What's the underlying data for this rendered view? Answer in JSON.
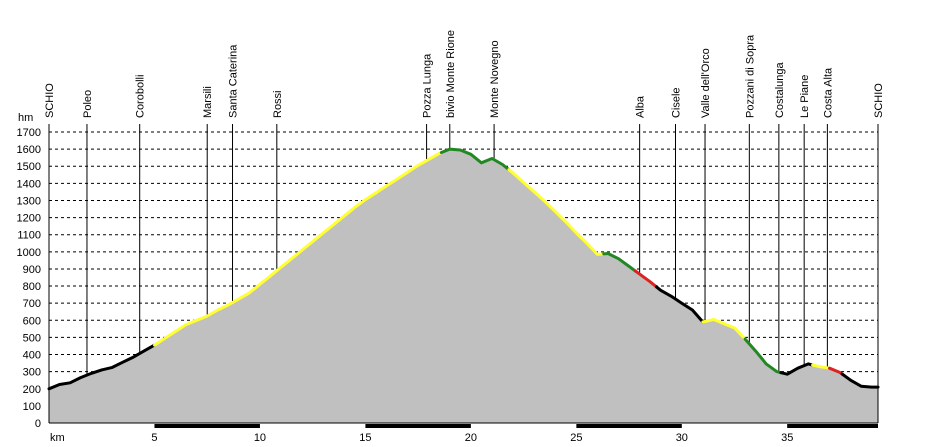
{
  "chart_data": {
    "type": "area",
    "ylabel": "hm",
    "xlabel": "km",
    "xlim": [
      0,
      39.3
    ],
    "ylim": [
      0,
      1700
    ],
    "grid": true,
    "y_ticks": [
      0,
      100,
      200,
      300,
      400,
      500,
      600,
      700,
      800,
      900,
      1000,
      1100,
      1200,
      1300,
      1400,
      1500,
      1600,
      1700
    ],
    "x_ticks": [
      5,
      10,
      15,
      20,
      25,
      30,
      35
    ],
    "colors": {
      "fill": "#c0c0c0",
      "black": "#000000",
      "yellow": "#ffff33",
      "green": "#228822",
      "red": "#dd2222",
      "grid": "#000000"
    },
    "waypoints": [
      {
        "name": "SCHIO",
        "km": 0.0
      },
      {
        "name": "Poleo",
        "km": 1.8
      },
      {
        "name": "Corobolli",
        "km": 4.3
      },
      {
        "name": "Marsili",
        "km": 7.5
      },
      {
        "name": "Santa Caterina",
        "km": 8.7
      },
      {
        "name": "Rossi",
        "km": 10.8
      },
      {
        "name": "Pozza Lunga",
        "km": 17.9
      },
      {
        "name": "bivio Monte Rione",
        "km": 19.0
      },
      {
        "name": "Monte Novegno",
        "km": 21.1
      },
      {
        "name": "Alba",
        "km": 28.0
      },
      {
        "name": "Cisele",
        "km": 29.7
      },
      {
        "name": "Valle dell'Orco",
        "km": 31.1
      },
      {
        "name": "Pozzani di Sopra",
        "km": 33.2
      },
      {
        "name": "Costalunga",
        "km": 34.6
      },
      {
        "name": "Le Piane",
        "km": 35.8
      },
      {
        "name": "Costa Alta",
        "km": 36.9
      },
      {
        "name": "SCHIO",
        "km": 39.3
      }
    ],
    "profile_x": [
      0,
      0.5,
      1,
      1.5,
      2,
      2.5,
      3,
      3.5,
      4,
      4.5,
      5,
      5.5,
      6,
      6.5,
      7,
      7.5,
      8,
      8.5,
      9,
      9.5,
      10,
      10.5,
      11,
      11.5,
      12,
      12.5,
      13,
      13.5,
      14,
      14.5,
      15,
      15.5,
      16,
      16.5,
      17,
      17.5,
      18,
      18.5,
      19,
      19.5,
      20,
      20.5,
      21,
      21.5,
      22,
      22.5,
      23,
      23.5,
      24,
      24.5,
      25,
      25.5,
      26,
      26.5,
      27,
      27.5,
      28,
      28.5,
      29,
      29.5,
      30,
      30.5,
      31,
      31.5,
      32,
      32.5,
      33,
      33.5,
      34,
      34.5,
      35,
      35.5,
      36,
      36.5,
      37,
      37.5,
      38,
      38.5,
      39,
      39.3
    ],
    "profile_y": [
      200,
      225,
      235,
      265,
      290,
      310,
      325,
      355,
      385,
      420,
      455,
      495,
      535,
      575,
      600,
      625,
      660,
      690,
      725,
      760,
      810,
      860,
      910,
      960,
      1010,
      1060,
      1110,
      1160,
      1210,
      1260,
      1305,
      1345,
      1385,
      1425,
      1465,
      1505,
      1540,
      1575,
      1600,
      1595,
      1570,
      1520,
      1545,
      1510,
      1460,
      1405,
      1350,
      1295,
      1235,
      1175,
      1110,
      1050,
      985,
      990,
      960,
      915,
      870,
      825,
      775,
      740,
      700,
      660,
      590,
      605,
      580,
      555,
      490,
      420,
      345,
      300,
      285,
      320,
      345,
      330,
      320,
      295,
      250,
      215,
      210,
      210
    ],
    "segments": [
      {
        "from": 0.0,
        "to": 5.0,
        "color": "black"
      },
      {
        "from": 5.0,
        "to": 12.6,
        "color": "yellow"
      },
      {
        "from": 12.6,
        "to": 18.6,
        "color": "yellow"
      },
      {
        "from": 18.6,
        "to": 21.8,
        "color": "green"
      },
      {
        "from": 21.8,
        "to": 26.3,
        "color": "yellow"
      },
      {
        "from": 26.3,
        "to": 27.8,
        "color": "green"
      },
      {
        "from": 27.8,
        "to": 28.8,
        "color": "red"
      },
      {
        "from": 28.8,
        "to": 31.0,
        "color": "black"
      },
      {
        "from": 31.0,
        "to": 33.0,
        "color": "yellow"
      },
      {
        "from": 33.0,
        "to": 34.7,
        "color": "green"
      },
      {
        "from": 34.7,
        "to": 36.2,
        "color": "black"
      },
      {
        "from": 36.2,
        "to": 37.0,
        "color": "yellow"
      },
      {
        "from": 37.0,
        "to": 37.6,
        "color": "red"
      },
      {
        "from": 37.6,
        "to": 39.3,
        "color": "black"
      }
    ]
  }
}
